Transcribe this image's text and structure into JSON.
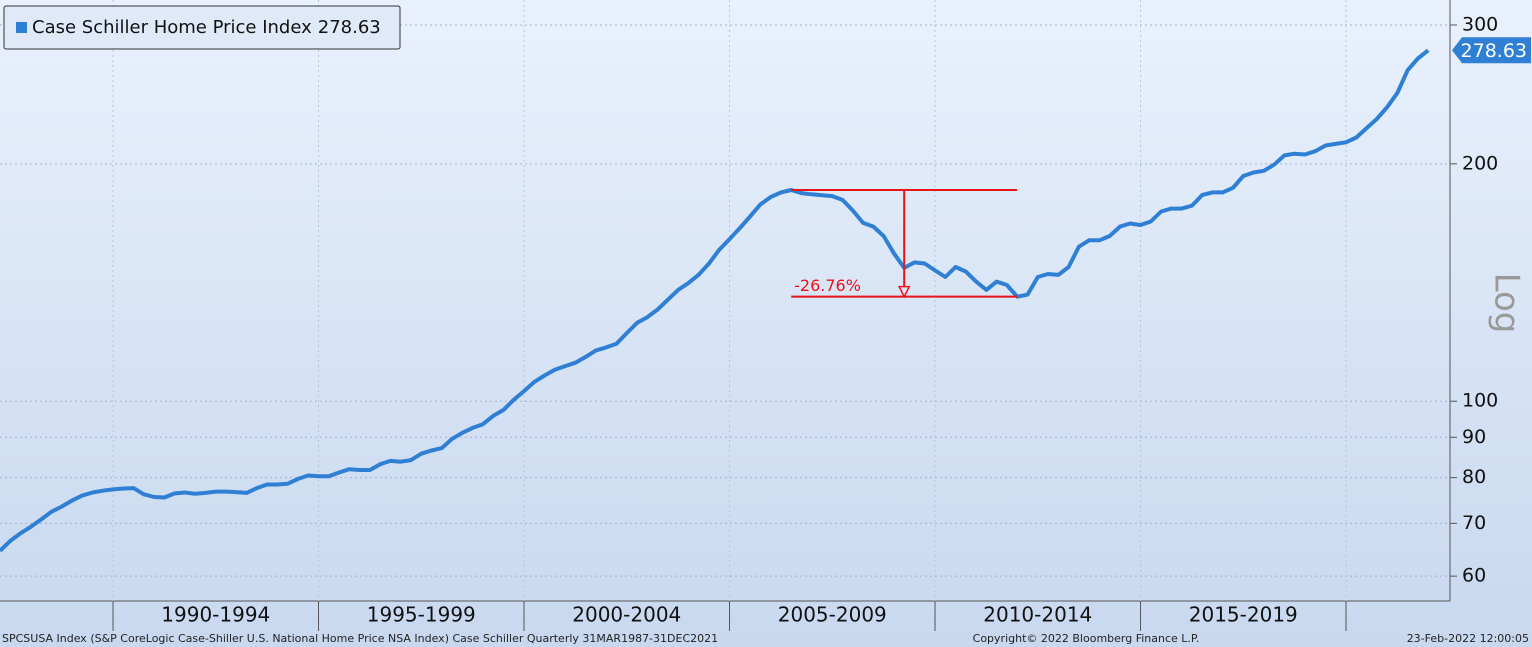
{
  "chart_data": {
    "type": "line",
    "series": [
      {
        "name": "Case Schiller Home Price Index",
        "color": "#2f7fd4",
        "values": [
          64.6,
          66.5,
          68.0,
          69.3,
          70.8,
          72.4,
          73.5,
          74.8,
          75.9,
          76.6,
          77.0,
          77.3,
          77.5,
          77.6,
          76.2,
          75.6,
          75.5,
          76.4,
          76.6,
          76.3,
          76.5,
          76.8,
          76.8,
          76.7,
          76.5,
          77.6,
          78.4,
          78.4,
          78.6,
          79.7,
          80.5,
          80.3,
          80.3,
          81.2,
          82.0,
          81.8,
          81.8,
          83.2,
          84.0,
          83.8,
          84.2,
          85.8,
          86.6,
          87.2,
          89.6,
          91.2,
          92.5,
          93.5,
          95.8,
          97.5,
          100.4,
          103.0,
          105.8,
          107.8,
          109.6,
          110.8,
          111.9,
          113.8,
          116.0,
          117.0,
          118.3,
          122.0,
          125.7,
          127.8,
          130.7,
          134.5,
          138.4,
          141.2,
          144.7,
          149.5,
          155.6,
          160.5,
          165.8,
          171.5,
          177.6,
          181.5,
          184.0,
          185.3,
          183.6,
          183.0,
          182.5,
          182.0,
          180.0,
          174.5,
          168.3,
          166.5,
          162.0,
          154.0,
          147.6,
          150.0,
          149.5,
          146.5,
          143.7,
          148.0,
          146.0,
          141.8,
          138.4,
          141.8,
          140.4,
          135.7,
          136.5,
          143.7,
          145.0,
          144.6,
          148.0,
          157.0,
          160.0,
          160.0,
          162.0,
          166.5,
          168.0,
          167.3,
          169.0,
          174.0,
          175.5,
          175.5,
          177.0,
          182.6,
          184.0,
          184.0,
          186.5,
          193.0,
          195.0,
          196.0,
          199.5,
          205.0,
          206.0,
          205.5,
          207.5,
          211.0,
          212.0,
          213.0,
          216.0,
          222.0,
          228.0,
          236.0,
          246.0,
          263.0,
          272.0,
          278.63
        ]
      }
    ],
    "x": [
      1987.25,
      1987.5,
      1987.75,
      1988,
      1988.25,
      1988.5,
      1988.75,
      1989,
      1989.25,
      1989.5,
      1989.75,
      1990,
      1990.25,
      1990.5,
      1990.75,
      1991,
      1991.25,
      1991.5,
      1991.75,
      1992,
      1992.25,
      1992.5,
      1992.75,
      1993,
      1993.25,
      1993.5,
      1993.75,
      1994,
      1994.25,
      1994.5,
      1994.75,
      1995,
      1995.25,
      1995.5,
      1995.75,
      1996,
      1996.25,
      1996.5,
      1996.75,
      1997,
      1997.25,
      1997.5,
      1997.75,
      1998,
      1998.25,
      1998.5,
      1998.75,
      1999,
      1999.25,
      1999.5,
      1999.75,
      2000,
      2000.25,
      2000.5,
      2000.75,
      2001,
      2001.25,
      2001.5,
      2001.75,
      2002,
      2002.25,
      2002.5,
      2002.75,
      2003,
      2003.25,
      2003.5,
      2003.75,
      2004,
      2004.25,
      2004.5,
      2004.75,
      2005,
      2005.25,
      2005.5,
      2005.75,
      2006,
      2006.25,
      2006.5,
      2006.75,
      2007,
      2007.25,
      2007.5,
      2007.75,
      2008,
      2008.25,
      2008.5,
      2008.75,
      2009,
      2009.25,
      2009.5,
      2009.75,
      2010,
      2010.25,
      2010.5,
      2010.75,
      2011,
      2011.25,
      2011.5,
      2011.75,
      2012,
      2012.25,
      2012.5,
      2012.75,
      2013,
      2013.25,
      2013.5,
      2013.75,
      2014,
      2014.25,
      2014.5,
      2014.75,
      2015,
      2015.25,
      2015.5,
      2015.75,
      2016,
      2016.25,
      2016.5,
      2016.75,
      2017,
      2017.25,
      2017.5,
      2017.75,
      2018,
      2018.25,
      2018.5,
      2018.75,
      2019,
      2019.25,
      2019.5,
      2019.75,
      2020,
      2020.25,
      2020.5,
      2020.75,
      2021,
      2021.25,
      2021.5,
      2021.75,
      2022
    ],
    "xlim": [
      1987.25,
      2022.53
    ],
    "xticks": [
      {
        "value": 1990,
        "label": "1990-1994"
      },
      {
        "value": 1995,
        "label": "1995-1999"
      },
      {
        "value": 2000,
        "label": "2000-2004"
      },
      {
        "value": 2005,
        "label": "2005-2009"
      },
      {
        "value": 2010,
        "label": "2010-2014"
      },
      {
        "value": 2015,
        "label": "2015-2019"
      }
    ],
    "ylim": [
      55.8,
      322.7
    ],
    "yticks": [
      60,
      70,
      80,
      90,
      100,
      200,
      300
    ],
    "log": true,
    "y_axis_label": "Log",
    "grid": true,
    "legend": "top-left",
    "annotation": {
      "label": "-26.76%",
      "color": "#e8141b"
    },
    "footer": {
      "left": "SPCSUSA Index (S&P CoreLogic Case-Shiller U.S. National Home Price NSA Index) Case Schiller  Quarterly 31MAR1987-31DEC2021",
      "center": "Copyright© 2022 Bloomberg Finance L.P.",
      "right": "23-Feb-2022 12:00:05"
    }
  }
}
